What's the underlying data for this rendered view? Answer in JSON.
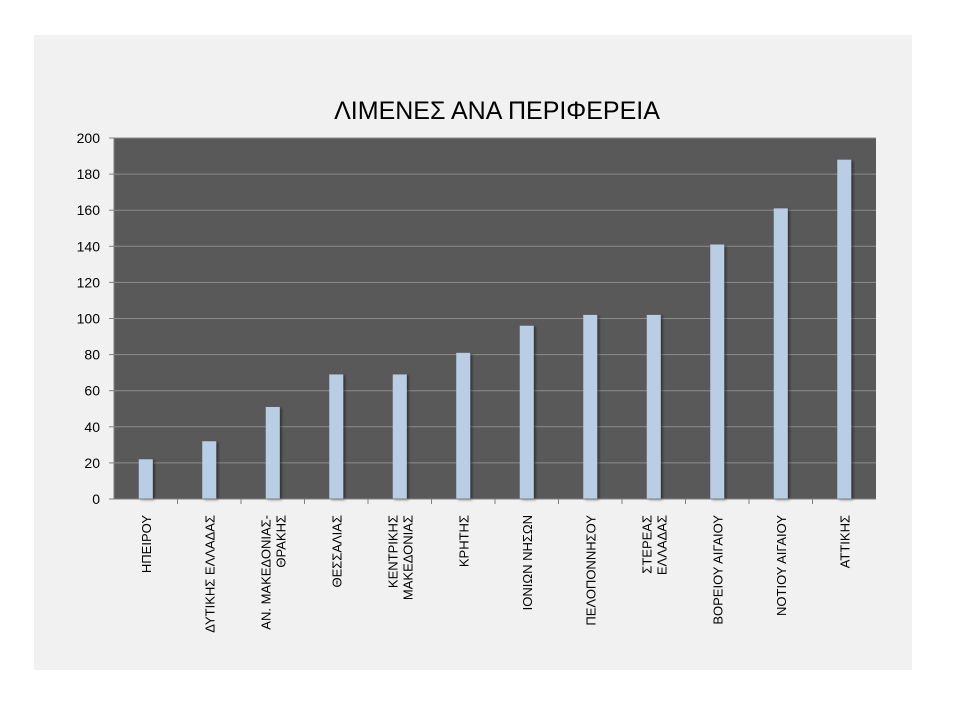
{
  "chart_data": {
    "type": "bar",
    "title": "ΛΙΜΕΝΕΣ ΑΝΑ ΠΕΡΙΦΕΡΕΙΑ",
    "xlabel": "",
    "ylabel": "",
    "ylim": [
      0,
      200
    ],
    "yticks": [
      0,
      20,
      40,
      60,
      80,
      100,
      120,
      140,
      160,
      180,
      200
    ],
    "grid": true,
    "legend": "none",
    "categories": [
      [
        "ΗΠΕΙΡΟΥ"
      ],
      [
        "ΔΥΤΙΚΗΣ ΕΛΛΑΔΑΣ"
      ],
      [
        "ΑΝ. ΜΑΚΕΔΟΝΙΑΣ-",
        "ΘΡΑΚΗΣ"
      ],
      [
        "ΘΕΣΣΑΛΙΑΣ"
      ],
      [
        "ΚΕΝΤΡΙΚΗΣ",
        "ΜΑΚΕΔΟΝΙΑΣ"
      ],
      [
        "ΚΡΗΤΗΣ"
      ],
      [
        "ΙΟΝΙΩΝ ΝΗΣΩΝ"
      ],
      [
        "ΠΕΛΟΠΟΝΝΗΣΟΥ"
      ],
      [
        "ΣΤΕΡΕΑΣ",
        "ΕΛΛΑΔΑΣ"
      ],
      [
        "ΒΟΡΕΙΟΥ ΑΙΓΑΙΟΥ"
      ],
      [
        "ΝΟΤΙΟΥ ΑΙΓΑΙΟΥ"
      ],
      [
        "ΑΤΤΙΚΗΣ"
      ]
    ],
    "values": [
      22,
      32,
      51,
      69,
      69,
      81,
      96,
      102,
      102,
      141,
      161,
      188
    ],
    "colors": {
      "bar": "#b9cde5",
      "plot_background": "#595959",
      "gridline": "#8c8c8c",
      "slide_background": "#f1f1f1"
    }
  }
}
